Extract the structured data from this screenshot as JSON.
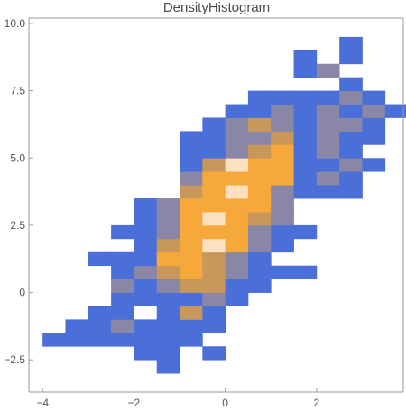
{
  "chart_data": {
    "type": "heatmap",
    "title": "DensityHistogram",
    "xlabel": "",
    "ylabel": "",
    "xlim": [
      -4.3,
      3.9
    ],
    "ylim": [
      -3.7,
      10.2
    ],
    "x_ticks": [
      -4,
      -2,
      0,
      2
    ],
    "x_tick_labels": [
      "−4",
      "−2",
      "0",
      "2"
    ],
    "y_ticks": [
      -2.5,
      0,
      2.5,
      5,
      7.5,
      10
    ],
    "y_tick_labels": [
      "−2.5",
      "0",
      "2.5",
      "5.0",
      "7.5",
      "10.0"
    ],
    "bin_width_x": 0.5,
    "bin_width_y": 0.5,
    "color_scale": [
      "#4b6fd9",
      "#8a86a6",
      "#c7985a",
      "#f7a83a",
      "#fde0bf"
    ],
    "density_cells": [
      {
        "x": -1.5,
        "y": -3.0,
        "level": 0
      },
      {
        "x": -2.0,
        "y": -2.5,
        "level": 0
      },
      {
        "x": -1.5,
        "y": -2.5,
        "level": 0
      },
      {
        "x": -0.5,
        "y": -2.5,
        "level": 0
      },
      {
        "x": -4.0,
        "y": -2.0,
        "level": 0
      },
      {
        "x": -3.5,
        "y": -2.0,
        "level": 0
      },
      {
        "x": -3.0,
        "y": -2.0,
        "level": 0
      },
      {
        "x": -2.5,
        "y": -2.0,
        "level": 0
      },
      {
        "x": -2.0,
        "y": -2.0,
        "level": 0
      },
      {
        "x": -1.5,
        "y": -2.0,
        "level": 0
      },
      {
        "x": -1.0,
        "y": -2.0,
        "level": 0
      },
      {
        "x": -3.5,
        "y": -1.5,
        "level": 0
      },
      {
        "x": -3.0,
        "y": -1.5,
        "level": 0
      },
      {
        "x": -2.5,
        "y": -1.5,
        "level": 1
      },
      {
        "x": -2.0,
        "y": -1.5,
        "level": 0
      },
      {
        "x": -1.5,
        "y": -1.5,
        "level": 0
      },
      {
        "x": -1.0,
        "y": -1.5,
        "level": 0
      },
      {
        "x": -0.5,
        "y": -1.5,
        "level": 0
      },
      {
        "x": -3.0,
        "y": -1.0,
        "level": 0
      },
      {
        "x": -2.5,
        "y": -1.0,
        "level": 0
      },
      {
        "x": -1.5,
        "y": -1.0,
        "level": 0
      },
      {
        "x": -1.0,
        "y": -1.0,
        "level": 2
      },
      {
        "x": -0.5,
        "y": -1.0,
        "level": 0
      },
      {
        "x": -2.5,
        "y": -0.5,
        "level": 0
      },
      {
        "x": -2.0,
        "y": -0.5,
        "level": 0
      },
      {
        "x": -1.5,
        "y": -0.5,
        "level": 0
      },
      {
        "x": -1.0,
        "y": -0.5,
        "level": 0
      },
      {
        "x": -0.5,
        "y": -0.5,
        "level": 1
      },
      {
        "x": 0.0,
        "y": -0.5,
        "level": 0
      },
      {
        "x": -2.5,
        "y": 0.0,
        "level": 1
      },
      {
        "x": -2.0,
        "y": 0.0,
        "level": 0
      },
      {
        "x": -1.5,
        "y": 0.0,
        "level": 1
      },
      {
        "x": -1.0,
        "y": 0.0,
        "level": 2
      },
      {
        "x": -0.5,
        "y": 0.0,
        "level": 2
      },
      {
        "x": 0.0,
        "y": 0.0,
        "level": 0
      },
      {
        "x": 0.5,
        "y": 0.0,
        "level": 0
      },
      {
        "x": -2.5,
        "y": 0.5,
        "level": 0
      },
      {
        "x": -2.0,
        "y": 0.5,
        "level": 1
      },
      {
        "x": -1.5,
        "y": 0.5,
        "level": 2
      },
      {
        "x": -1.0,
        "y": 0.5,
        "level": 3
      },
      {
        "x": -0.5,
        "y": 0.5,
        "level": 2
      },
      {
        "x": 0.0,
        "y": 0.5,
        "level": 1
      },
      {
        "x": 0.5,
        "y": 0.5,
        "level": 0
      },
      {
        "x": 1.0,
        "y": 0.5,
        "level": 0
      },
      {
        "x": 1.5,
        "y": 0.5,
        "level": 0
      },
      {
        "x": -3.0,
        "y": 1.0,
        "level": 0
      },
      {
        "x": -2.5,
        "y": 1.0,
        "level": 0
      },
      {
        "x": -2.0,
        "y": 1.0,
        "level": 0
      },
      {
        "x": -1.5,
        "y": 1.0,
        "level": 3
      },
      {
        "x": -1.0,
        "y": 1.0,
        "level": 3
      },
      {
        "x": -0.5,
        "y": 1.0,
        "level": 2
      },
      {
        "x": 0.0,
        "y": 1.0,
        "level": 1
      },
      {
        "x": 0.5,
        "y": 1.0,
        "level": 0
      },
      {
        "x": -2.0,
        "y": 1.5,
        "level": 0
      },
      {
        "x": -1.5,
        "y": 1.5,
        "level": 2
      },
      {
        "x": -1.0,
        "y": 1.5,
        "level": 3
      },
      {
        "x": -0.5,
        "y": 1.5,
        "level": 4
      },
      {
        "x": 0.0,
        "y": 1.5,
        "level": 3
      },
      {
        "x": 0.5,
        "y": 1.5,
        "level": 1
      },
      {
        "x": 1.0,
        "y": 1.5,
        "level": 0
      },
      {
        "x": -2.5,
        "y": 2.0,
        "level": 0
      },
      {
        "x": -2.0,
        "y": 2.0,
        "level": 0
      },
      {
        "x": -1.5,
        "y": 2.0,
        "level": 1
      },
      {
        "x": -1.0,
        "y": 2.0,
        "level": 3
      },
      {
        "x": -0.5,
        "y": 2.0,
        "level": 3
      },
      {
        "x": 0.0,
        "y": 2.0,
        "level": 3
      },
      {
        "x": 0.5,
        "y": 2.0,
        "level": 1
      },
      {
        "x": 1.0,
        "y": 2.0,
        "level": 0
      },
      {
        "x": 1.5,
        "y": 2.0,
        "level": 0
      },
      {
        "x": -2.0,
        "y": 2.5,
        "level": 0
      },
      {
        "x": -1.5,
        "y": 2.5,
        "level": 1
      },
      {
        "x": -1.0,
        "y": 2.5,
        "level": 3
      },
      {
        "x": -0.5,
        "y": 2.5,
        "level": 4
      },
      {
        "x": 0.0,
        "y": 2.5,
        "level": 3
      },
      {
        "x": 0.5,
        "y": 2.5,
        "level": 2
      },
      {
        "x": 1.0,
        "y": 2.5,
        "level": 1
      },
      {
        "x": -2.0,
        "y": 3.0,
        "level": 0
      },
      {
        "x": -1.5,
        "y": 3.0,
        "level": 1
      },
      {
        "x": -1.0,
        "y": 3.0,
        "level": 3
      },
      {
        "x": -0.5,
        "y": 3.0,
        "level": 3
      },
      {
        "x": 0.0,
        "y": 3.0,
        "level": 3
      },
      {
        "x": 0.5,
        "y": 3.0,
        "level": 3
      },
      {
        "x": 1.0,
        "y": 3.0,
        "level": 1
      },
      {
        "x": -1.0,
        "y": 3.5,
        "level": 2
      },
      {
        "x": -0.5,
        "y": 3.5,
        "level": 3
      },
      {
        "x": 0.0,
        "y": 3.5,
        "level": 4
      },
      {
        "x": 0.5,
        "y": 3.5,
        "level": 3
      },
      {
        "x": 1.0,
        "y": 3.5,
        "level": 1
      },
      {
        "x": 1.5,
        "y": 3.5,
        "level": 0
      },
      {
        "x": 2.0,
        "y": 3.5,
        "level": 0
      },
      {
        "x": 2.5,
        "y": 3.5,
        "level": 0
      },
      {
        "x": -1.0,
        "y": 4.0,
        "level": 1
      },
      {
        "x": -0.5,
        "y": 4.0,
        "level": 3
      },
      {
        "x": 0.0,
        "y": 4.0,
        "level": 3
      },
      {
        "x": 0.5,
        "y": 4.0,
        "level": 3
      },
      {
        "x": 1.0,
        "y": 4.0,
        "level": 3
      },
      {
        "x": 1.5,
        "y": 4.0,
        "level": 0
      },
      {
        "x": 2.0,
        "y": 4.0,
        "level": 1
      },
      {
        "x": 2.5,
        "y": 4.0,
        "level": 0
      },
      {
        "x": -1.0,
        "y": 4.5,
        "level": 0
      },
      {
        "x": -0.5,
        "y": 4.5,
        "level": 2
      },
      {
        "x": 0.0,
        "y": 4.5,
        "level": 4
      },
      {
        "x": 0.5,
        "y": 4.5,
        "level": 3
      },
      {
        "x": 1.0,
        "y": 4.5,
        "level": 3
      },
      {
        "x": 1.5,
        "y": 4.5,
        "level": 0
      },
      {
        "x": 2.0,
        "y": 4.5,
        "level": 0
      },
      {
        "x": 2.5,
        "y": 4.5,
        "level": 1
      },
      {
        "x": 3.0,
        "y": 4.5,
        "level": 0
      },
      {
        "x": -1.0,
        "y": 5.0,
        "level": 0
      },
      {
        "x": -0.5,
        "y": 5.0,
        "level": 0
      },
      {
        "x": 0.0,
        "y": 5.0,
        "level": 1
      },
      {
        "x": 0.5,
        "y": 5.0,
        "level": 2
      },
      {
        "x": 1.0,
        "y": 5.0,
        "level": 3
      },
      {
        "x": 1.5,
        "y": 5.0,
        "level": 0
      },
      {
        "x": 2.0,
        "y": 5.0,
        "level": 1
      },
      {
        "x": 2.5,
        "y": 5.0,
        "level": 0
      },
      {
        "x": -1.0,
        "y": 5.5,
        "level": 0
      },
      {
        "x": -0.5,
        "y": 5.5,
        "level": 0
      },
      {
        "x": 0.0,
        "y": 5.5,
        "level": 1
      },
      {
        "x": 0.5,
        "y": 5.5,
        "level": 1
      },
      {
        "x": 1.0,
        "y": 5.5,
        "level": 2
      },
      {
        "x": 1.5,
        "y": 5.5,
        "level": 0
      },
      {
        "x": 2.0,
        "y": 5.5,
        "level": 1
      },
      {
        "x": 2.5,
        "y": 5.5,
        "level": 0
      },
      {
        "x": 3.0,
        "y": 5.5,
        "level": 0
      },
      {
        "x": -0.5,
        "y": 6.0,
        "level": 0
      },
      {
        "x": 0.0,
        "y": 6.0,
        "level": 1
      },
      {
        "x": 0.5,
        "y": 6.0,
        "level": 2
      },
      {
        "x": 1.0,
        "y": 6.0,
        "level": 1
      },
      {
        "x": 1.5,
        "y": 6.0,
        "level": 0
      },
      {
        "x": 2.0,
        "y": 6.0,
        "level": 1
      },
      {
        "x": 2.5,
        "y": 6.0,
        "level": 1
      },
      {
        "x": 3.0,
        "y": 6.0,
        "level": 0
      },
      {
        "x": 0.0,
        "y": 6.5,
        "level": 0
      },
      {
        "x": 0.5,
        "y": 6.5,
        "level": 0
      },
      {
        "x": 1.0,
        "y": 6.5,
        "level": 1
      },
      {
        "x": 1.5,
        "y": 6.5,
        "level": 0
      },
      {
        "x": 2.0,
        "y": 6.5,
        "level": 1
      },
      {
        "x": 2.5,
        "y": 6.5,
        "level": 0
      },
      {
        "x": 3.0,
        "y": 6.5,
        "level": 1
      },
      {
        "x": 3.5,
        "y": 6.5,
        "level": 0
      },
      {
        "x": 0.5,
        "y": 7.0,
        "level": 0
      },
      {
        "x": 1.0,
        "y": 7.0,
        "level": 0
      },
      {
        "x": 1.5,
        "y": 7.0,
        "level": 0
      },
      {
        "x": 2.0,
        "y": 7.0,
        "level": 0
      },
      {
        "x": 2.5,
        "y": 7.0,
        "level": 1
      },
      {
        "x": 3.0,
        "y": 7.0,
        "level": 0
      },
      {
        "x": 2.5,
        "y": 7.5,
        "level": 0
      },
      {
        "x": 1.5,
        "y": 8.0,
        "level": 0
      },
      {
        "x": 2.0,
        "y": 8.0,
        "level": 1
      },
      {
        "x": 1.5,
        "y": 8.5,
        "level": 0
      },
      {
        "x": 2.5,
        "y": 8.5,
        "level": 0
      },
      {
        "x": 2.5,
        "y": 9.0,
        "level": 0
      }
    ]
  }
}
